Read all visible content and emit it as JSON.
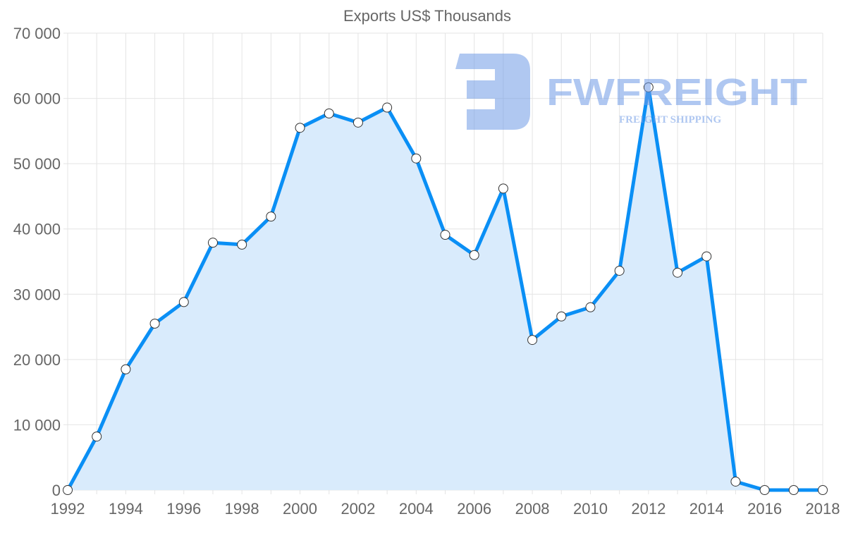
{
  "chart_data": {
    "type": "line",
    "title": "Exports US$ Thousands",
    "xlabel": "",
    "ylabel": "",
    "x": [
      1992,
      1993,
      1994,
      1995,
      1996,
      1997,
      1998,
      1999,
      2000,
      2001,
      2002,
      2003,
      2004,
      2005,
      2006,
      2007,
      2008,
      2009,
      2010,
      2011,
      2012,
      2013,
      2014,
      2015,
      2016,
      2017,
      2018
    ],
    "series": [
      {
        "name": "Exports US$ Thousands",
        "color": "#0a8ff5",
        "fill": "#d9ebfc",
        "values": [
          0,
          8200,
          18500,
          25500,
          28800,
          37900,
          37600,
          41900,
          55500,
          57700,
          56300,
          58600,
          50800,
          39100,
          36000,
          46200,
          23000,
          26600,
          28000,
          33600,
          61700,
          33300,
          35800,
          1300,
          0,
          0,
          0
        ]
      }
    ],
    "xlim": [
      1992,
      2018
    ],
    "ylim": [
      0,
      70000
    ],
    "x_ticks": [
      "1992",
      "1994",
      "1996",
      "1998",
      "2000",
      "2002",
      "2004",
      "2006",
      "2008",
      "2010",
      "2012",
      "2014",
      "2016",
      "2018"
    ],
    "y_ticks": [
      "0",
      "10 000",
      "20 000",
      "30 000",
      "40 000",
      "50 000",
      "60 000",
      "70 000"
    ],
    "grid": true,
    "legend": "none"
  },
  "watermark": {
    "brand": "FWFREIGHT",
    "tagline": "FREIGHT SHIPPING"
  }
}
